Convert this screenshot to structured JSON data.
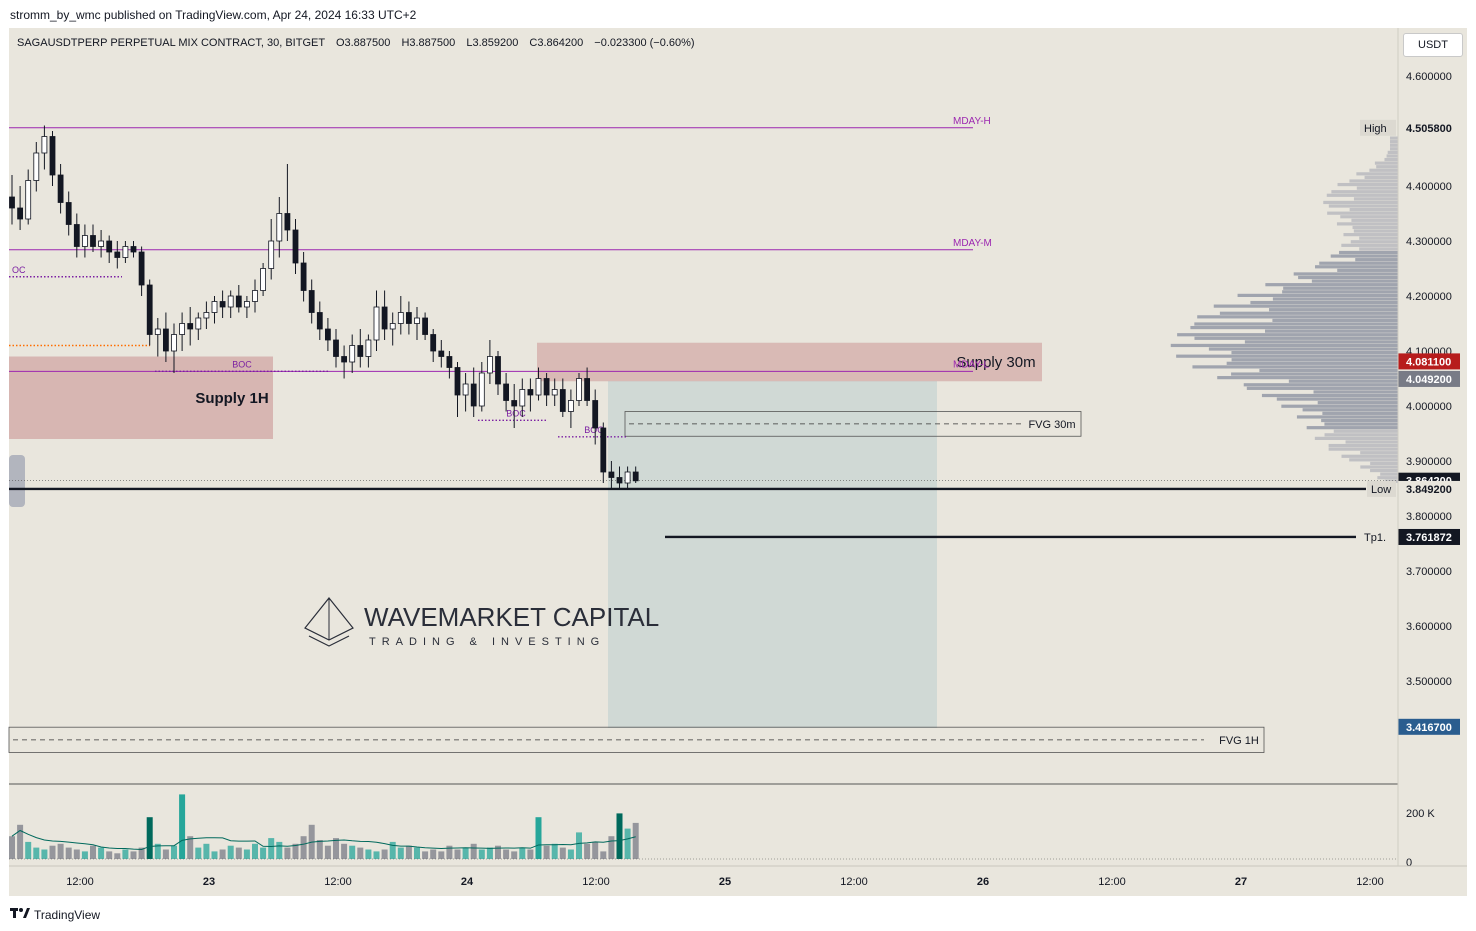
{
  "header": {
    "published_by": "stromm_by_wmc published on TradingView.com, Apr 24, 2024 16:33 UTC+2"
  },
  "legend": {
    "symbol": "SAGAUSDTPERP PERPETUAL MIX CONTRACT, 30, BITGET",
    "open": "O3.887500",
    "high": "H3.887500",
    "low": "L3.859200",
    "close": "C3.864200",
    "change": "−0.023300 (−0.60%)"
  },
  "currency_button": "USDT",
  "footer": {
    "brand": "TradingView",
    "brand_icon": "tradingview-logo-icon"
  },
  "watermark": {
    "title": "WAVEMARKET CAPITAL",
    "subtitle": "TRADING & INVESTING",
    "icon": "pyramid-logo-icon"
  },
  "colors": {
    "background": "#e9e6dd",
    "level_purple": "#9c27b0",
    "boc_purple": "#7b1fa2",
    "supply_zone": "#c98e8e",
    "position_box": "#c7d4d2",
    "volume_up": "#26a69a",
    "volume_up_strong": "#00695c",
    "volume_down": "#787b86",
    "profile": "#8d93a3",
    "candle": "#131722",
    "orange_dots": "#ff6d00"
  },
  "chart_data": {
    "type": "candlestick",
    "interval": "30",
    "ylim": [
      3.37,
      4.68
    ],
    "y_ticks": [
      "4.600000",
      "4.400000",
      "4.300000",
      "4.200000",
      "4.100000",
      "4.000000",
      "3.900000",
      "3.800000",
      "3.700000",
      "3.600000",
      "3.500000"
    ],
    "x_ticks": [
      "12:00",
      "23",
      "12:00",
      "24",
      "12:00",
      "25",
      "12:00",
      "26",
      "12:00",
      "27",
      "12:00"
    ],
    "price_labels": [
      {
        "text": "High",
        "value": "4.505800",
        "style": "plain"
      },
      {
        "text": "",
        "value": "4.081100",
        "style": "red"
      },
      {
        "text": "",
        "value": "4.049200",
        "style": "grey"
      },
      {
        "text": "",
        "value": "3.864200",
        "style": "dark"
      },
      {
        "text": "Low",
        "value": "3.849200",
        "style": "plain"
      },
      {
        "text": "Tp1.",
        "value": "3.761872",
        "style": "dark"
      },
      {
        "text": "",
        "value": "3.416700",
        "style": "blue"
      }
    ],
    "levels": [
      {
        "name": "MDAY-H",
        "price": 4.5058
      },
      {
        "name": "MDAY-M",
        "price": 4.284
      },
      {
        "name": "MDAY-L",
        "price": 4.063
      }
    ],
    "zones": [
      {
        "name": "Supply 1H",
        "top": 4.09,
        "bottom": 3.94
      },
      {
        "name": "Supply 30m",
        "top": 4.115,
        "bottom": 4.045
      },
      {
        "name": "FVG 30m",
        "top": 3.99,
        "bottom": 3.945
      },
      {
        "name": "FVG 1H",
        "top": 3.416,
        "bottom": 3.37
      }
    ],
    "boc_labels": [
      "BOC",
      "BOC",
      "BOC",
      "OC"
    ],
    "volume_axis": [
      "200 K",
      "0"
    ],
    "candles": [
      [
        4.38,
        4.42,
        4.33,
        4.36
      ],
      [
        4.36,
        4.4,
        4.32,
        4.34
      ],
      [
        4.34,
        4.43,
        4.33,
        4.41
      ],
      [
        4.41,
        4.48,
        4.39,
        4.46
      ],
      [
        4.46,
        4.51,
        4.43,
        4.49
      ],
      [
        4.49,
        4.5,
        4.4,
        4.42
      ],
      [
        4.42,
        4.44,
        4.35,
        4.37
      ],
      [
        4.37,
        4.39,
        4.31,
        4.33
      ],
      [
        4.33,
        4.35,
        4.27,
        4.29
      ],
      [
        4.29,
        4.33,
        4.27,
        4.31
      ],
      [
        4.31,
        4.33,
        4.28,
        4.29
      ],
      [
        4.29,
        4.32,
        4.27,
        4.3
      ],
      [
        4.3,
        4.31,
        4.26,
        4.28
      ],
      [
        4.28,
        4.3,
        4.25,
        4.27
      ],
      [
        4.27,
        4.3,
        4.26,
        4.29
      ],
      [
        4.29,
        4.3,
        4.27,
        4.28
      ],
      [
        4.28,
        4.29,
        4.2,
        4.22
      ],
      [
        4.22,
        4.23,
        4.11,
        4.13
      ],
      [
        4.13,
        4.16,
        4.09,
        4.14
      ],
      [
        4.14,
        4.17,
        4.08,
        4.1
      ],
      [
        4.1,
        4.15,
        4.06,
        4.13
      ],
      [
        4.13,
        4.17,
        4.1,
        4.15
      ],
      [
        4.15,
        4.18,
        4.11,
        4.14
      ],
      [
        4.14,
        4.17,
        4.12,
        4.16
      ],
      [
        4.16,
        4.19,
        4.14,
        4.17
      ],
      [
        4.17,
        4.2,
        4.15,
        4.19
      ],
      [
        4.19,
        4.21,
        4.16,
        4.18
      ],
      [
        4.18,
        4.21,
        4.16,
        4.2
      ],
      [
        4.2,
        4.22,
        4.17,
        4.18
      ],
      [
        4.18,
        4.2,
        4.16,
        4.19
      ],
      [
        4.19,
        4.23,
        4.17,
        4.21
      ],
      [
        4.21,
        4.26,
        4.2,
        4.25
      ],
      [
        4.25,
        4.34,
        4.23,
        4.3
      ],
      [
        4.3,
        4.38,
        4.27,
        4.35
      ],
      [
        4.35,
        4.44,
        4.3,
        4.32
      ],
      [
        4.32,
        4.34,
        4.24,
        4.26
      ],
      [
        4.26,
        4.28,
        4.19,
        4.21
      ],
      [
        4.21,
        4.23,
        4.15,
        4.17
      ],
      [
        4.17,
        4.19,
        4.12,
        4.14
      ],
      [
        4.14,
        4.16,
        4.1,
        4.12
      ],
      [
        4.12,
        4.14,
        4.07,
        4.09
      ],
      [
        4.09,
        4.11,
        4.05,
        4.08
      ],
      [
        4.08,
        4.13,
        4.06,
        4.11
      ],
      [
        4.11,
        4.14,
        4.07,
        4.09
      ],
      [
        4.09,
        4.13,
        4.07,
        4.12
      ],
      [
        4.12,
        4.21,
        4.1,
        4.18
      ],
      [
        4.18,
        4.21,
        4.12,
        4.14
      ],
      [
        4.14,
        4.17,
        4.11,
        4.15
      ],
      [
        4.15,
        4.2,
        4.13,
        4.17
      ],
      [
        4.17,
        4.19,
        4.13,
        4.15
      ],
      [
        4.15,
        4.18,
        4.12,
        4.16
      ],
      [
        4.16,
        4.17,
        4.12,
        4.13
      ],
      [
        4.13,
        4.14,
        4.08,
        4.1
      ],
      [
        4.1,
        4.12,
        4.07,
        4.09
      ],
      [
        4.09,
        4.1,
        4.05,
        4.07
      ],
      [
        4.07,
        4.08,
        3.98,
        4.02
      ],
      [
        4.02,
        4.06,
        3.99,
        4.04
      ],
      [
        4.04,
        4.07,
        3.98,
        4.0
      ],
      [
        4.0,
        4.08,
        3.99,
        4.06
      ],
      [
        4.06,
        4.12,
        4.04,
        4.09
      ],
      [
        4.09,
        4.1,
        4.02,
        4.04
      ],
      [
        4.04,
        4.06,
        3.99,
        4.01
      ],
      [
        4.01,
        4.04,
        3.96,
        4.0
      ],
      [
        4.0,
        4.05,
        3.98,
        4.03
      ],
      [
        4.03,
        4.05,
        3.99,
        4.02
      ],
      [
        4.02,
        4.07,
        4.01,
        4.05
      ],
      [
        4.05,
        4.06,
        4.0,
        4.02
      ],
      [
        4.02,
        4.05,
        4.0,
        4.03
      ],
      [
        4.03,
        4.05,
        3.98,
        3.99
      ],
      [
        3.99,
        4.03,
        3.96,
        4.01
      ],
      [
        4.01,
        4.06,
        4.0,
        4.05
      ],
      [
        4.05,
        4.07,
        4.0,
        4.01
      ],
      [
        4.01,
        4.03,
        3.93,
        3.96
      ],
      [
        3.96,
        3.97,
        3.86,
        3.88
      ],
      [
        3.88,
        3.9,
        3.85,
        3.87
      ],
      [
        3.87,
        3.89,
        3.85,
        3.86
      ],
      [
        3.86,
        3.89,
        3.85,
        3.88
      ],
      [
        3.88,
        3.89,
        3.86,
        3.864
      ]
    ],
    "volumes": [
      60,
      90,
      45,
      30,
      25,
      35,
      40,
      30,
      25,
      20,
      35,
      30,
      20,
      15,
      25,
      20,
      30,
      110,
      40,
      25,
      35,
      170,
      60,
      30,
      40,
      20,
      25,
      35,
      30,
      25,
      40,
      30,
      55,
      45,
      30,
      40,
      60,
      90,
      50,
      35,
      55,
      40,
      35,
      30,
      25,
      20,
      25,
      45,
      30,
      35,
      30,
      20,
      25,
      20,
      35,
      25,
      30,
      40,
      25,
      30,
      35,
      25,
      20,
      30,
      25,
      110,
      35,
      40,
      30,
      25,
      70,
      40,
      45,
      20,
      60,
      120,
      80,
      95
    ]
  }
}
